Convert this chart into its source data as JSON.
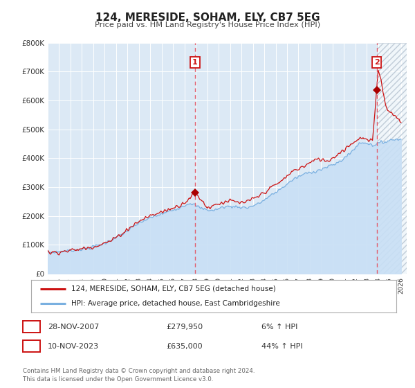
{
  "title": "124, MERESIDE, SOHAM, ELY, CB7 5EG",
  "subtitle": "Price paid vs. HM Land Registry's House Price Index (HPI)",
  "bg_color": "#dce9f5",
  "fig_bg_color": "#ffffff",
  "hpi_line_color": "#7ab0e0",
  "hpi_fill_color": "#c8dff5",
  "price_color": "#cc1111",
  "marker_color": "#aa0000",
  "vline_color": "#e06070",
  "hatch_color": "#c0ccd8",
  "ylim": [
    0,
    800000
  ],
  "yticks": [
    0,
    100000,
    200000,
    300000,
    400000,
    500000,
    600000,
    700000,
    800000
  ],
  "ytick_labels": [
    "£0",
    "£100K",
    "£200K",
    "£300K",
    "£400K",
    "£500K",
    "£600K",
    "£700K",
    "£800K"
  ],
  "xmin": 1995.0,
  "xmax": 2026.5,
  "xticks": [
    1995,
    1996,
    1997,
    1998,
    1999,
    2000,
    2001,
    2002,
    2003,
    2004,
    2005,
    2006,
    2007,
    2008,
    2009,
    2010,
    2011,
    2012,
    2013,
    2014,
    2015,
    2016,
    2017,
    2018,
    2019,
    2020,
    2021,
    2022,
    2023,
    2024,
    2025,
    2026
  ],
  "sale1_x": 2007.91,
  "sale1_y": 279950,
  "sale1_label": "1",
  "sale2_x": 2023.86,
  "sale2_y": 635000,
  "sale2_label": "2",
  "legend_line1": "124, MERESIDE, SOHAM, ELY, CB7 5EG (detached house)",
  "legend_line2": "HPI: Average price, detached house, East Cambridgeshire",
  "table_row1_num": "1",
  "table_row1_date": "28-NOV-2007",
  "table_row1_price": "£279,950",
  "table_row1_hpi": "6% ↑ HPI",
  "table_row2_num": "2",
  "table_row2_date": "10-NOV-2023",
  "table_row2_price": "£635,000",
  "table_row2_hpi": "44% ↑ HPI",
  "footer": "Contains HM Land Registry data © Crown copyright and database right 2024.\nThis data is licensed under the Open Government Licence v3.0."
}
